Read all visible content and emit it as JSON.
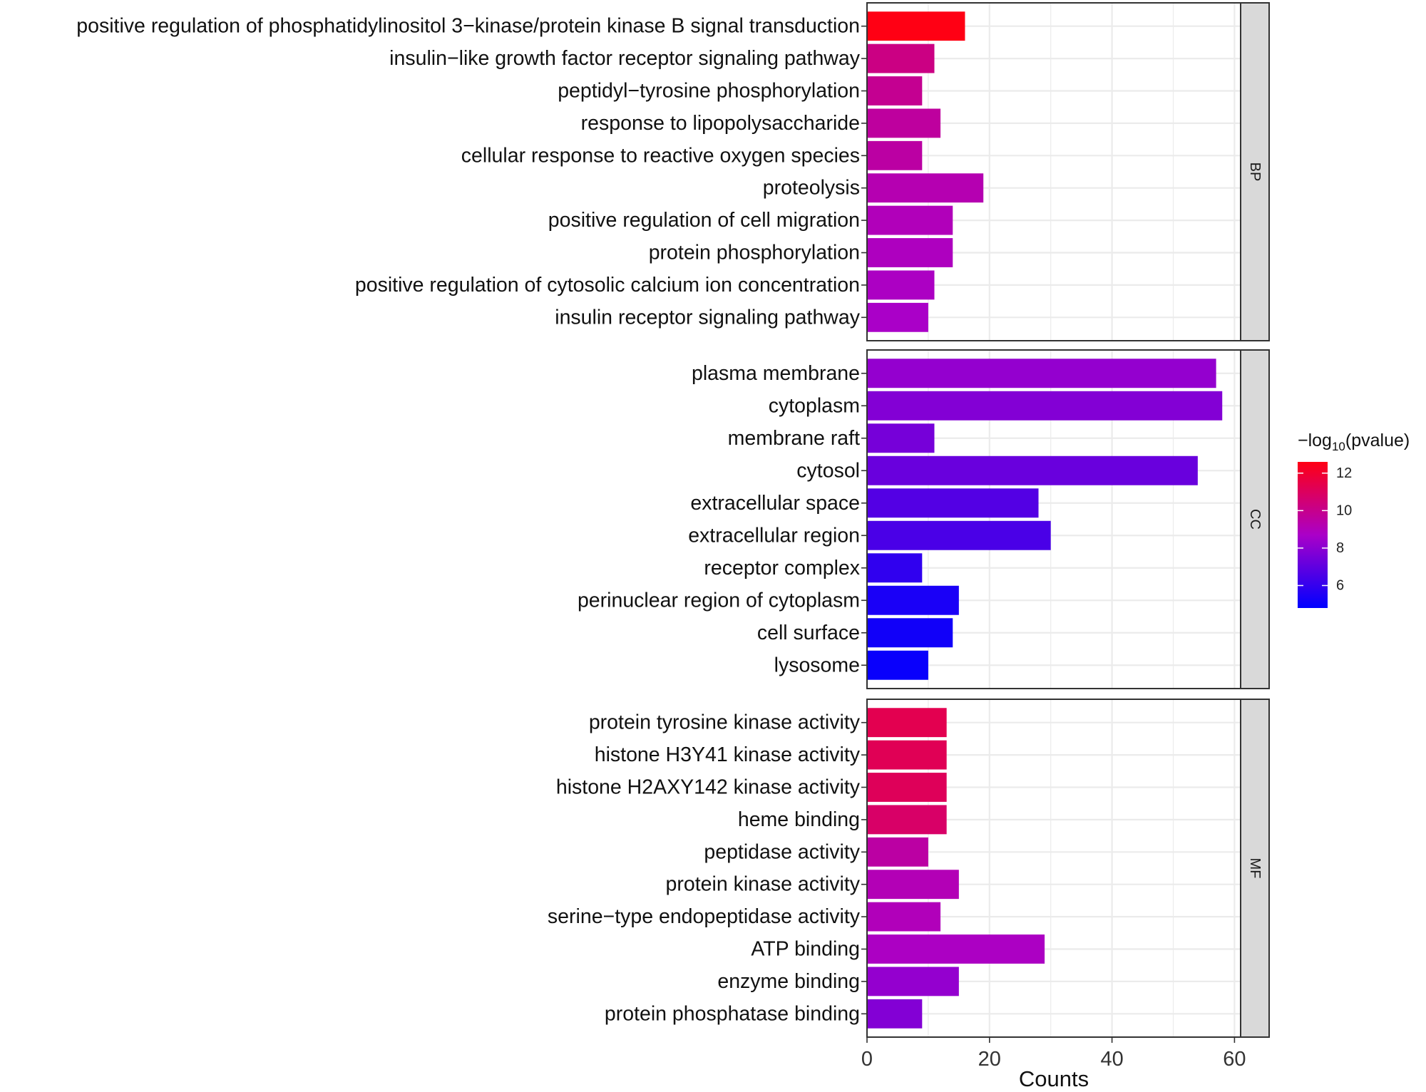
{
  "chart_data": {
    "type": "bar",
    "orientation": "horizontal",
    "xlabel": "Counts",
    "xlim": [
      0,
      61
    ],
    "xticks": [
      0,
      20,
      40,
      60
    ],
    "grid": true,
    "legend": {
      "title_prefix": "−log",
      "title_sub": "10",
      "title_suffix": "(pvalue)",
      "min": 4.8,
      "max": 12.6,
      "ticks": [
        6,
        8,
        10,
        12
      ],
      "color_low": "#0000ff",
      "color_high": "#ff0000",
      "placement": "right"
    },
    "panels": [
      {
        "name": "BP",
        "categories": [
          "positive regulation of phosphatidylinositol 3−kinase/protein kinase B signal transduction",
          "insulin−like growth factor receptor signaling pathway",
          "peptidyl−tyrosine phosphorylation",
          "response to lipopolysaccharide",
          "cellular response to reactive oxygen species",
          "proteolysis",
          "positive regulation of cell migration",
          "protein phosphorylation",
          "positive regulation of cytosolic calcium ion concentration",
          "insulin receptor signaling pathway"
        ],
        "values": [
          16,
          11,
          9,
          12,
          9,
          19,
          14,
          14,
          11,
          10
        ],
        "pvalue_log10": [
          12.6,
          10.2,
          9.9,
          9.6,
          9.5,
          9.2,
          9.0,
          8.9,
          8.8,
          8.7
        ]
      },
      {
        "name": "CC",
        "categories": [
          "plasma membrane",
          "cytoplasm",
          "membrane raft",
          "cytosol",
          "extracellular space",
          "extracellular region",
          "receptor complex",
          "perinuclear region of cytoplasm",
          "cell surface",
          "lysosome"
        ],
        "values": [
          57,
          58,
          11,
          54,
          28,
          30,
          9,
          15,
          14,
          10
        ],
        "pvalue_log10": [
          8.2,
          7.8,
          7.5,
          7.2,
          6.7,
          6.5,
          5.9,
          5.4,
          5.2,
          5.0
        ]
      },
      {
        "name": "MF",
        "categories": [
          "protein tyrosine kinase activity",
          "histone H3Y41 kinase activity",
          "histone H2AXY142 kinase activity",
          "heme binding",
          "peptidase activity",
          "protein kinase activity",
          "serine−type endopeptidase activity",
          "ATP binding",
          "enzyme binding",
          "protein phosphatase binding"
        ],
        "values": [
          13,
          13,
          13,
          13,
          10,
          15,
          12,
          29,
          15,
          9
        ],
        "pvalue_log10": [
          11.3,
          11.2,
          11.1,
          10.8,
          9.5,
          9.1,
          9.0,
          8.8,
          8.2,
          7.8
        ]
      }
    ]
  }
}
